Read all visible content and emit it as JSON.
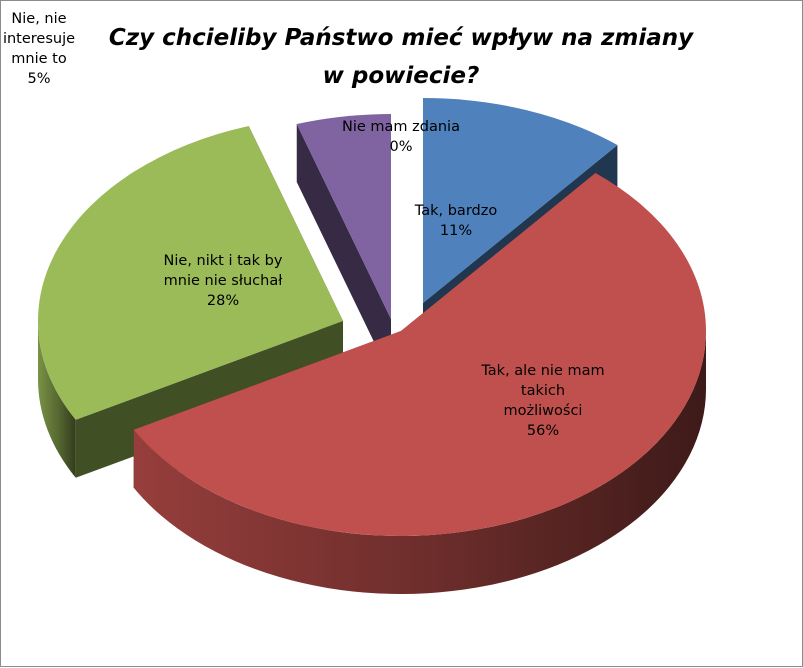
{
  "chart_data": {
    "type": "pie",
    "title": "Czy chcieliby Państwo mieć wpływ na zmiany w powiecie?",
    "slices": [
      {
        "lines": [
          "Tak, bardzo"
        ],
        "pct_label": "11%",
        "value": 11,
        "color": "#4F81BD"
      },
      {
        "lines": [
          "Tak, ale nie mam",
          "takich",
          "możliwości"
        ],
        "pct_label": "56%",
        "value": 56,
        "color": "#C0504D"
      },
      {
        "lines": [
          "Nie, nikt i tak by",
          "mnie nie słuchał"
        ],
        "pct_label": "28%",
        "value": 28,
        "color": "#9BBB59"
      },
      {
        "lines": [
          "Nie, nie",
          "interesuje",
          "mnie to"
        ],
        "pct_label": "5%",
        "value": 5,
        "color": "#8064A2"
      },
      {
        "lines": [
          "Nie mam zdania"
        ],
        "pct_label": "0%",
        "value": 0,
        "color": "#4BACC6"
      }
    ],
    "legend": "none",
    "style": "3d-exploded-pie"
  }
}
